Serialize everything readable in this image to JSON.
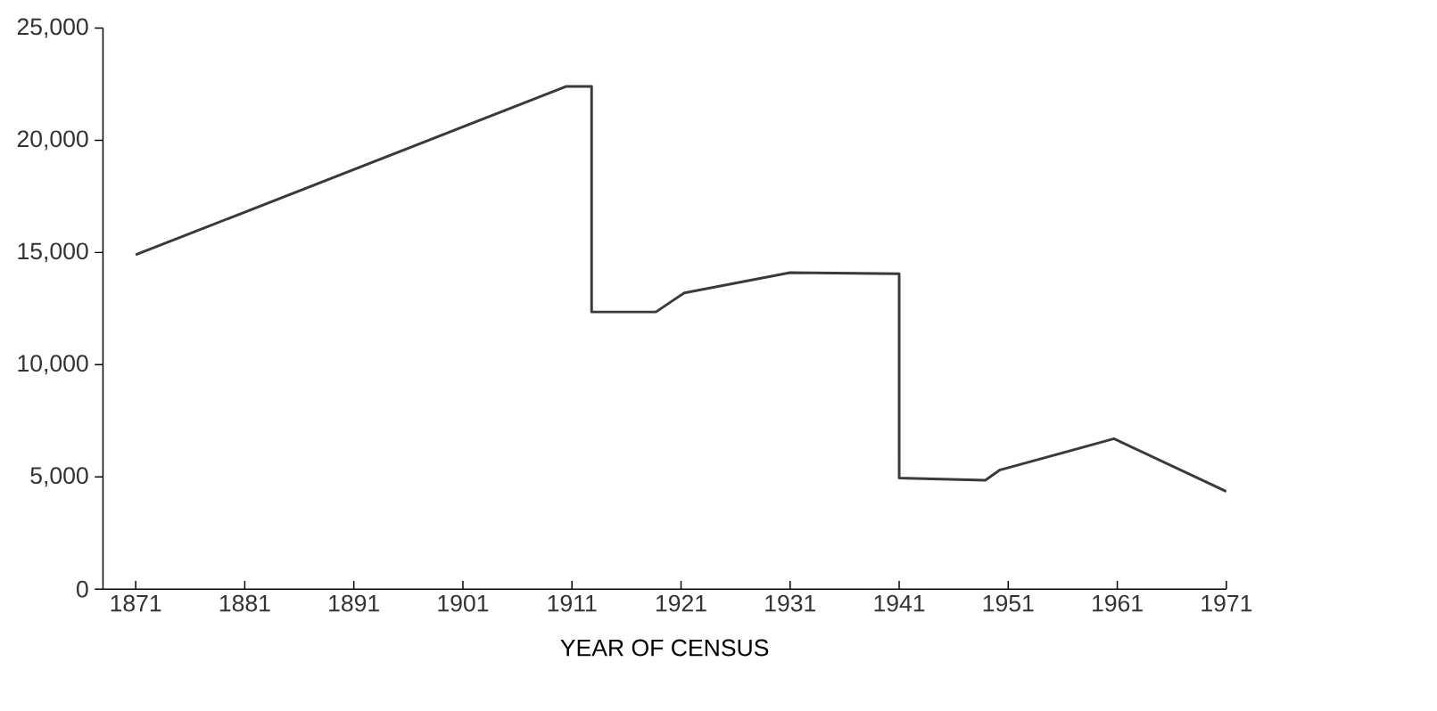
{
  "chart_data": {
    "type": "line",
    "xlabel": "YEAR OF CENSUS",
    "x": [
      1871,
      1910.5,
      1912.8,
      1912.8,
      1918.7,
      1921.3,
      1931,
      1941,
      1941,
      1948.9,
      1950.2,
      1960.7,
      1971
    ],
    "values": [
      14900,
      22400,
      22400,
      12350,
      12350,
      13200,
      14100,
      14050,
      4950,
      4850,
      5300,
      6700,
      4350
    ],
    "color": "#3a3a3a",
    "xlim": [
      1868,
      1971
    ],
    "xticks": [
      1871,
      1881,
      1891,
      1901,
      1911,
      1921,
      1931,
      1941,
      1951,
      1961,
      1971
    ],
    "ylim": [
      0,
      25000
    ],
    "yticks": [
      {
        "value": 0,
        "label": "0"
      },
      {
        "value": 5000,
        "label": "5,000"
      },
      {
        "value": 10000,
        "label": "10,000"
      },
      {
        "value": 15000,
        "label": "15,000"
      },
      {
        "value": 20000,
        "label": "20,000"
      },
      {
        "value": 25000,
        "label": "25,000"
      }
    ],
    "grid": false
  }
}
